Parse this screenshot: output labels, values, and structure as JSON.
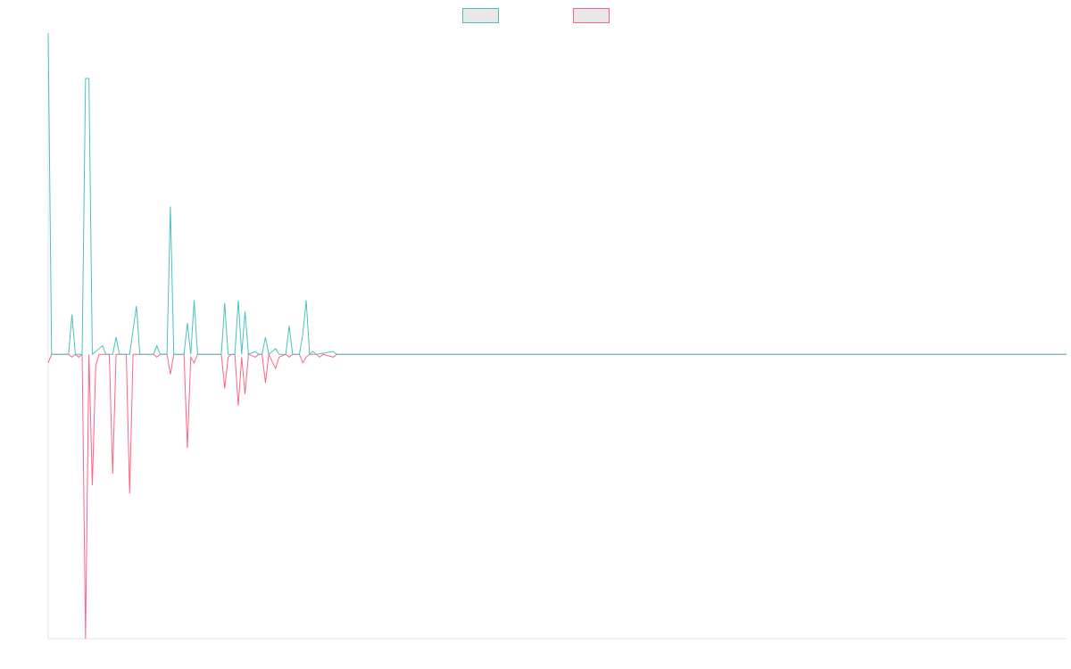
{
  "chart_data": {
    "type": "line",
    "title": "",
    "xlabel": "",
    "ylabel": "",
    "grid": false,
    "legend": {
      "position": "top-center"
    },
    "x_range": [
      0,
      300
    ],
    "ylim": [
      -1,
      1.13
    ],
    "series": [
      {
        "color": "#4bc0c0",
        "fill": "#e8e8e8",
        "values": [
          [
            0,
            1.13
          ],
          [
            1,
            0
          ],
          [
            6,
            0
          ],
          [
            7,
            0.14
          ],
          [
            8,
            0
          ],
          [
            9,
            0.0
          ],
          [
            10,
            0
          ],
          [
            11,
            0.97
          ],
          [
            12,
            0.97
          ],
          [
            13,
            0
          ],
          [
            16,
            0.03
          ],
          [
            17,
            0
          ],
          [
            19,
            0
          ],
          [
            20,
            0.06
          ],
          [
            21,
            0
          ],
          [
            24,
            0
          ],
          [
            26,
            0.17
          ],
          [
            27,
            0
          ],
          [
            31,
            0
          ],
          [
            32,
            0.03
          ],
          [
            33,
            0
          ],
          [
            35,
            0
          ],
          [
            36,
            0.52
          ],
          [
            37,
            0
          ],
          [
            40,
            0
          ],
          [
            41,
            0.11
          ],
          [
            42,
            0
          ],
          [
            43,
            0.19
          ],
          [
            44,
            0
          ],
          [
            51,
            0
          ],
          [
            52,
            0.18
          ],
          [
            53,
            0
          ],
          [
            55,
            0
          ],
          [
            56,
            0.19
          ],
          [
            57,
            0
          ],
          [
            58,
            0.15
          ],
          [
            59,
            0
          ],
          [
            61,
            0.01
          ],
          [
            62,
            0
          ],
          [
            63,
            0
          ],
          [
            64,
            0.06
          ],
          [
            65,
            0
          ],
          [
            67,
            0.02
          ],
          [
            68,
            0
          ],
          [
            70,
            0
          ],
          [
            71,
            0.1
          ],
          [
            72,
            0
          ],
          [
            74,
            0
          ],
          [
            75,
            0.07
          ],
          [
            76,
            0.19
          ],
          [
            77,
            0
          ],
          [
            78,
            0.01
          ],
          [
            79,
            0
          ],
          [
            84,
            0.01
          ],
          [
            85,
            0
          ],
          [
            300,
            0
          ]
        ]
      },
      {
        "color": "#ff6384",
        "fill": "#e8e8e8",
        "values": [
          [
            0,
            -0.03
          ],
          [
            1,
            0
          ],
          [
            6,
            0
          ],
          [
            7,
            -0.01
          ],
          [
            8,
            0
          ],
          [
            9,
            -0.01
          ],
          [
            10,
            0
          ],
          [
            11,
            -1.0
          ],
          [
            12,
            0
          ],
          [
            13,
            -0.46
          ],
          [
            14,
            -0.04
          ],
          [
            15,
            0
          ],
          [
            18,
            0
          ],
          [
            19,
            -0.42
          ],
          [
            20,
            0
          ],
          [
            23,
            0
          ],
          [
            24,
            -0.49
          ],
          [
            25,
            0
          ],
          [
            31,
            0
          ],
          [
            32,
            -0.01
          ],
          [
            33,
            0
          ],
          [
            35,
            0
          ],
          [
            36,
            -0.07
          ],
          [
            37,
            0
          ],
          [
            40,
            0
          ],
          [
            41,
            -0.33
          ],
          [
            42,
            -0.01
          ],
          [
            43,
            -0.03
          ],
          [
            44,
            0
          ],
          [
            51,
            0
          ],
          [
            52,
            -0.12
          ],
          [
            53,
            -0.01
          ],
          [
            54,
            0
          ],
          [
            55,
            0
          ],
          [
            56,
            -0.18
          ],
          [
            57,
            -0.01
          ],
          [
            58,
            -0.14
          ],
          [
            59,
            0
          ],
          [
            61,
            -0.01
          ],
          [
            62,
            0
          ],
          [
            63,
            0
          ],
          [
            64,
            -0.1
          ],
          [
            65,
            0
          ],
          [
            67,
            -0.05
          ],
          [
            68,
            -0.01
          ],
          [
            70,
            0
          ],
          [
            71,
            -0.01
          ],
          [
            72,
            0
          ],
          [
            74,
            0
          ],
          [
            75,
            -0.03
          ],
          [
            76,
            -0.01
          ],
          [
            77,
            0
          ],
          [
            79,
            0
          ],
          [
            80,
            -0.01
          ],
          [
            81,
            0
          ],
          [
            84,
            -0.01
          ],
          [
            85,
            0
          ],
          [
            300,
            0
          ]
        ]
      }
    ]
  }
}
